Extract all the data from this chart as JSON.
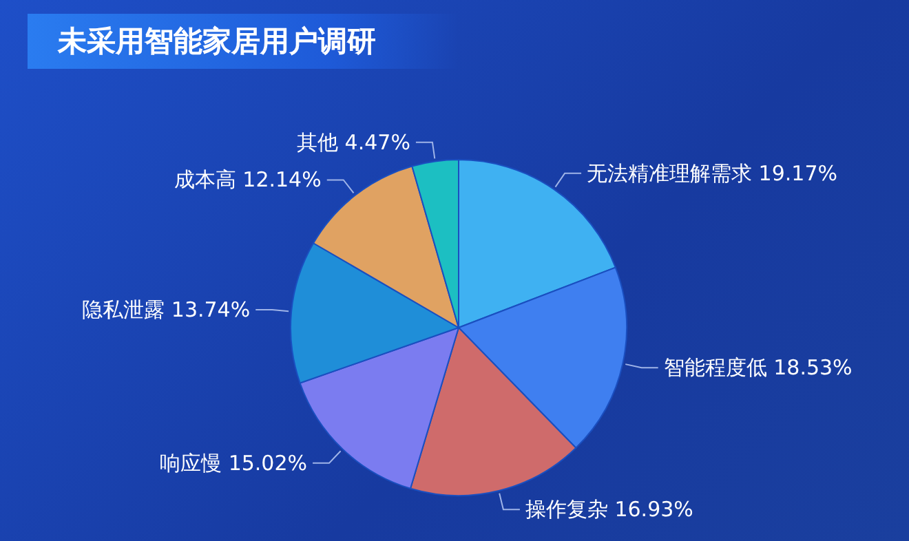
{
  "chart_data": {
    "type": "pie",
    "title": "未采用智能家居用户调研",
    "categories": [
      "无法精准理解需求",
      "智能程度低",
      "操作复杂",
      "响应慢",
      "隐私泄露",
      "成本高",
      "其他"
    ],
    "values": [
      19.17,
      18.53,
      16.93,
      15.02,
      13.74,
      12.14,
      4.47
    ],
    "value_labels": [
      "19.17%",
      "18.53%",
      "16.93%",
      "15.02%",
      "13.74%",
      "12.14%",
      "4.47%"
    ],
    "colors": [
      "#3fb1f2",
      "#3f7ff0",
      "#cf6b6b",
      "#7b7cf0",
      "#1f8ed8",
      "#e0a262",
      "#1cbfc2"
    ],
    "legend": false
  }
}
